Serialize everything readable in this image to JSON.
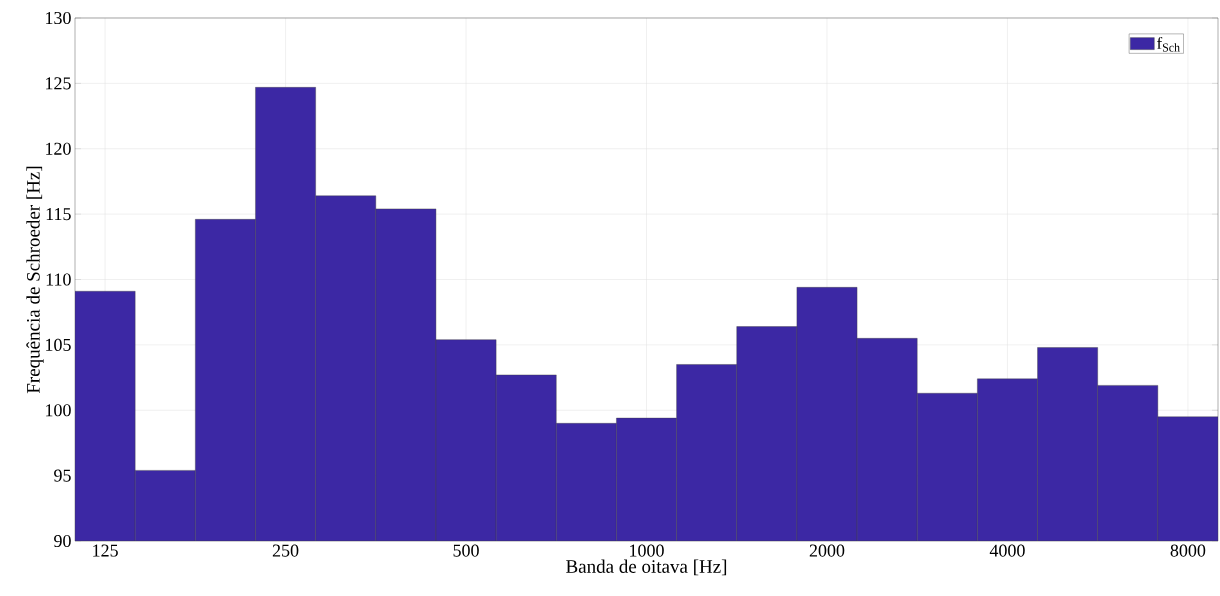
{
  "chart_data": {
    "type": "bar",
    "xlabel": "Banda de oitava [Hz]",
    "ylabel": "Frequência de Schroeder [Hz]",
    "categories": [
      "125",
      null,
      null,
      "250",
      null,
      null,
      "500",
      null,
      null,
      "1000",
      null,
      null,
      "2000",
      null,
      null,
      "4000",
      null,
      null,
      "8000"
    ],
    "series": [
      {
        "name": "f$_{Sch}$",
        "color": "#3c28a4",
        "values": [
          109.1,
          95.4,
          114.6,
          124.7,
          116.4,
          115.4,
          105.4,
          102.7,
          99.0,
          99.4,
          103.5,
          106.4,
          109.4,
          105.5,
          101.3,
          102.4,
          104.8,
          101.9,
          99.5
        ]
      }
    ],
    "ylim": [
      90,
      130
    ],
    "yticks": [
      90,
      95,
      100,
      105,
      110,
      115,
      120,
      125,
      130
    ],
    "grid": true,
    "legend": "top right"
  }
}
